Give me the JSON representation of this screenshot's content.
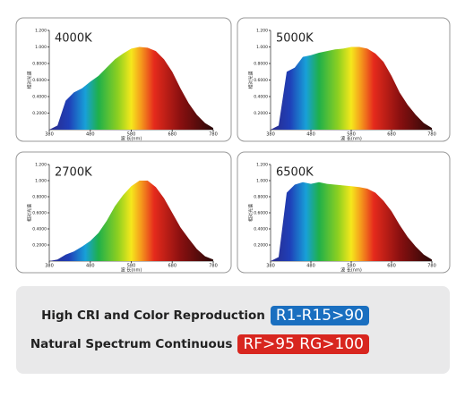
{
  "chart_data": [
    {
      "type": "area",
      "title": "4000K",
      "xlabel": "波 长(nm)",
      "ylabel": "相对光谱",
      "x": [
        380,
        400,
        420,
        440,
        460,
        480,
        500,
        520,
        540,
        560,
        580,
        600,
        620,
        640,
        660,
        680,
        700,
        720,
        740,
        760,
        780
      ],
      "values": [
        0,
        0.05,
        0.35,
        0.45,
        0.5,
        0.58,
        0.65,
        0.75,
        0.85,
        0.92,
        0.98,
        1.0,
        0.99,
        0.95,
        0.85,
        0.7,
        0.5,
        0.32,
        0.18,
        0.08,
        0.02
      ],
      "xlim": [
        380,
        780
      ],
      "xticks": [
        380,
        480,
        580,
        680,
        780
      ],
      "ylim": [
        0,
        1.2
      ],
      "yticks": [
        {
          "value": 0.2,
          "label": "0.2000"
        },
        {
          "value": 0.4,
          "label": "0.4000"
        },
        {
          "value": 0.6,
          "label": "0.6000"
        },
        {
          "value": 0.8,
          "label": "0.8000"
        },
        {
          "value": 1.0,
          "label": "1.000"
        },
        {
          "value": 1.2,
          "label": "1.200"
        }
      ]
    },
    {
      "type": "area",
      "title": "5000K",
      "xlabel": "波 长(nm)",
      "ylabel": "相对光谱",
      "x": [
        380,
        400,
        420,
        440,
        460,
        480,
        500,
        520,
        540,
        560,
        580,
        600,
        620,
        640,
        660,
        680,
        700,
        720,
        740,
        760,
        780
      ],
      "values": [
        0,
        0.05,
        0.7,
        0.75,
        0.88,
        0.9,
        0.93,
        0.95,
        0.97,
        0.98,
        1.0,
        1.0,
        0.98,
        0.92,
        0.82,
        0.65,
        0.45,
        0.3,
        0.18,
        0.08,
        0.02
      ],
      "xlim": [
        380,
        780
      ],
      "xticks": [
        380,
        480,
        580,
        680,
        780
      ],
      "ylim": [
        0,
        1.2
      ],
      "yticks": [
        {
          "value": 0.2,
          "label": "0.2000"
        },
        {
          "value": 0.4,
          "label": "0.4000"
        },
        {
          "value": 0.6,
          "label": "0.6000"
        },
        {
          "value": 0.8,
          "label": "0.8000"
        },
        {
          "value": 1.0,
          "label": "1.000"
        },
        {
          "value": 1.2,
          "label": "1.200"
        }
      ]
    },
    {
      "type": "area",
      "title": "2700K",
      "xlabel": "波 长(nm)",
      "ylabel": "相对光谱",
      "x": [
        380,
        400,
        420,
        440,
        460,
        480,
        500,
        520,
        540,
        560,
        580,
        600,
        620,
        640,
        660,
        680,
        700,
        720,
        740,
        760,
        780
      ],
      "values": [
        0,
        0.02,
        0.08,
        0.12,
        0.18,
        0.25,
        0.35,
        0.5,
        0.68,
        0.82,
        0.93,
        1.0,
        1.0,
        0.92,
        0.78,
        0.6,
        0.42,
        0.28,
        0.15,
        0.06,
        0.02
      ],
      "xlim": [
        380,
        780
      ],
      "xticks": [
        380,
        480,
        580,
        680,
        780
      ],
      "ylim": [
        0,
        1.2
      ],
      "yticks": [
        {
          "value": 0.2,
          "label": "0.2000"
        },
        {
          "value": 0.4,
          "label": "0.4000"
        },
        {
          "value": 0.6,
          "label": "0.6000"
        },
        {
          "value": 0.8,
          "label": "0.8000"
        },
        {
          "value": 1.0,
          "label": "1.000"
        },
        {
          "value": 1.2,
          "label": "1.200"
        }
      ]
    },
    {
      "type": "area",
      "title": "6500K",
      "xlabel": "波 长(nm)",
      "ylabel": "相对光谱",
      "x": [
        380,
        400,
        420,
        440,
        460,
        480,
        500,
        520,
        540,
        560,
        580,
        600,
        620,
        640,
        660,
        680,
        700,
        720,
        740,
        760,
        780
      ],
      "values": [
        0,
        0.05,
        0.85,
        0.95,
        0.98,
        0.96,
        0.98,
        0.96,
        0.95,
        0.94,
        0.93,
        0.92,
        0.9,
        0.85,
        0.75,
        0.62,
        0.45,
        0.3,
        0.18,
        0.08,
        0.02
      ],
      "xlim": [
        380,
        780
      ],
      "xticks": [
        380,
        480,
        580,
        680,
        780
      ],
      "ylim": [
        0,
        1.2
      ],
      "yticks": [
        {
          "value": 0.2,
          "label": "0.2000"
        },
        {
          "value": 0.4,
          "label": "0.4000"
        },
        {
          "value": 0.6,
          "label": "0.6000"
        },
        {
          "value": 0.8,
          "label": "0.8000"
        },
        {
          "value": 1.0,
          "label": "1.000"
        },
        {
          "value": 1.2,
          "label": "1.200"
        }
      ]
    }
  ],
  "features": [
    {
      "text": "High CRI and Color Reproduction",
      "badge": "R1-R15>90"
    },
    {
      "text": "Natural Spectrum Continuous",
      "badge": "RF>95 RG>100"
    }
  ]
}
